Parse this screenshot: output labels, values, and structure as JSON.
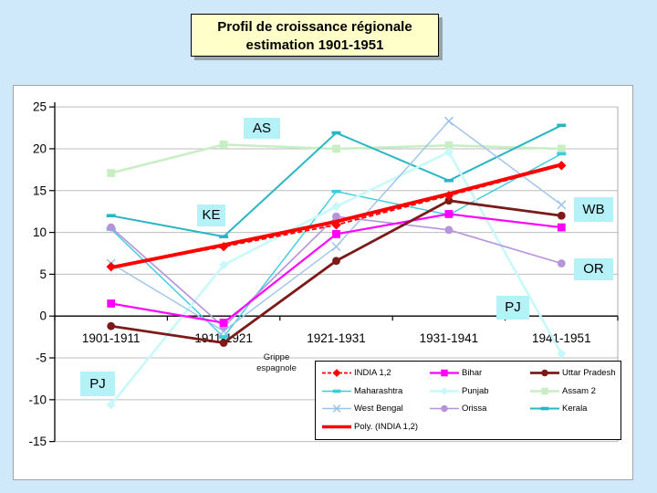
{
  "slide": {
    "title_line1": "Profil de croissance régionale",
    "title_line2": "estimation 1901-1951"
  },
  "callouts": {
    "as": "AS",
    "ke": "KE",
    "wb": "WB",
    "or": "OR",
    "pj_right": "PJ",
    "pj_left": "PJ",
    "grippe1": "Grippe",
    "grippe2": "espagnole"
  },
  "chart_data": {
    "type": "line",
    "title": "Profil de croissance régionale estimation 1901-1951",
    "xlabel": "",
    "ylabel": "",
    "ylim": [
      -15,
      25
    ],
    "ytick_step": 5,
    "grid": true,
    "legend_position": "bottom-right",
    "categories": [
      "1901-1911",
      "1911-1921",
      "1921-1931",
      "1931-1941",
      "1941-1951"
    ],
    "series": [
      {
        "name": "Assam 2",
        "color": "#c8eec3",
        "width": 2.5,
        "marker": "square",
        "dash": null,
        "values": [
          17.1,
          20.5,
          20.0,
          20.4,
          20.0
        ]
      },
      {
        "name": "Kerala",
        "color": "#28b6c2",
        "width": 2.0,
        "marker": "dash",
        "dash": null,
        "values": [
          12.0,
          9.5,
          21.9,
          16.2,
          22.8
        ]
      },
      {
        "name": "Maharashtra",
        "color": "#3cccdf",
        "width": 1.4,
        "marker": "dash",
        "dash": null,
        "values": [
          10.4,
          -2.5,
          14.9,
          12.1,
          19.4
        ]
      },
      {
        "name": "Punjab",
        "color": "#c9f8fa",
        "width": 2.6,
        "marker": "diamond",
        "dash": null,
        "values": [
          -10.6,
          6.1,
          13.1,
          19.6,
          -4.5
        ]
      },
      {
        "name": "West Bengal",
        "color": "#9cc3ea",
        "width": 1.4,
        "marker": "x",
        "dash": null,
        "values": [
          6.3,
          -1.8,
          8.3,
          23.3,
          13.3
        ]
      },
      {
        "name": "Orissa",
        "color": "#b694da",
        "width": 1.6,
        "marker": "circle",
        "dash": null,
        "values": [
          10.6,
          -1.3,
          11.9,
          10.3,
          6.3
        ]
      },
      {
        "name": "Bihar",
        "color": "#ff00ff",
        "width": 2.2,
        "marker": "square",
        "dash": null,
        "values": [
          1.5,
          -0.8,
          9.8,
          12.2,
          10.6
        ]
      },
      {
        "name": "Uttar Pradesh",
        "color": "#7c1a1a",
        "width": 2.8,
        "marker": "circle",
        "dash": null,
        "values": [
          -1.2,
          -3.2,
          6.6,
          13.8,
          12.0
        ]
      },
      {
        "name": "Poly. (INDIA 1,2)",
        "color": "#ff0000",
        "width": 4.0,
        "marker": "none",
        "dash": null,
        "values": [
          5.8,
          8.5,
          11.3,
          14.6,
          18.1
        ]
      },
      {
        "name": "INDIA 1,2",
        "color": "#ff0000",
        "width": 1.8,
        "marker": "diamond",
        "dash": "5,3",
        "values": [
          5.9,
          8.3,
          10.9,
          14.4,
          18.0
        ]
      }
    ],
    "legend_columns": [
      [
        "INDIA 1,2",
        "Maharashtra",
        "West Bengal",
        "Poly. (INDIA 1,2)"
      ],
      [
        "Bihar",
        "Punjab",
        "Orissa"
      ],
      [
        "Uttar Pradesh",
        "Assam 2",
        "Kerala"
      ]
    ],
    "annotations": [
      "AS",
      "KE",
      "WB",
      "OR",
      "PJ",
      "PJ",
      "Grippe espagnole"
    ]
  }
}
